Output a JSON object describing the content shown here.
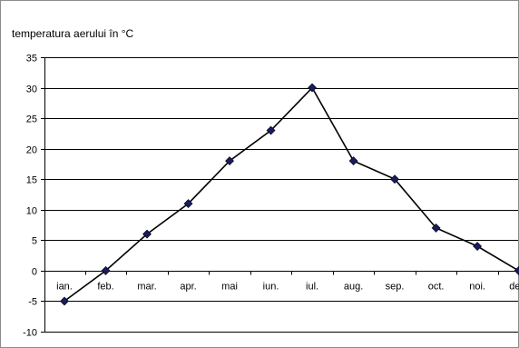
{
  "chart_data": {
    "type": "line",
    "ylabel": "temperatura aerului în °C",
    "categories": [
      "ian.",
      "feb.",
      "mar.",
      "apr.",
      "mai",
      "iun.",
      "iul.",
      "aug.",
      "sep.",
      "oct.",
      "noi.",
      "dec."
    ],
    "series": [
      {
        "values": [
          -5,
          0,
          6,
          11,
          18,
          23,
          30,
          18,
          15,
          7,
          4,
          0
        ],
        "color": "#000000",
        "marker_color": "#1a1a5e"
      }
    ],
    "ylim": [
      -10,
      35
    ],
    "yticks": [
      35,
      30,
      25,
      20,
      15,
      10,
      5,
      0,
      -5,
      -10
    ],
    "grid": true,
    "legend": "none"
  }
}
